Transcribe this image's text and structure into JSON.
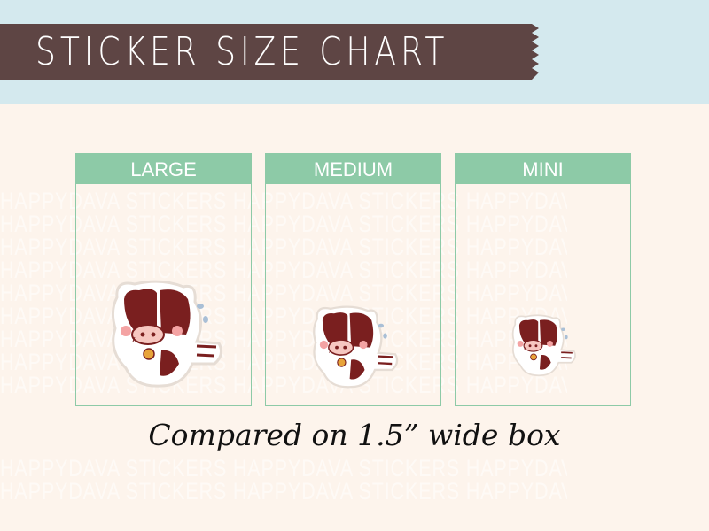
{
  "title": "STICKER SIZE CHART",
  "watermark": "HAPPYDAVA STICKERS",
  "panels": [
    {
      "label": "LARGE"
    },
    {
      "label": "MEDIUM"
    },
    {
      "label": "MINI"
    }
  ],
  "caption": "Compared on 1.5” wide box",
  "colors": {
    "banner": "#5e4544",
    "sky": "#d4e9ee",
    "background": "#fdf4ec",
    "panel": "#8dcaa7",
    "cow": "#7a1f1f"
  }
}
